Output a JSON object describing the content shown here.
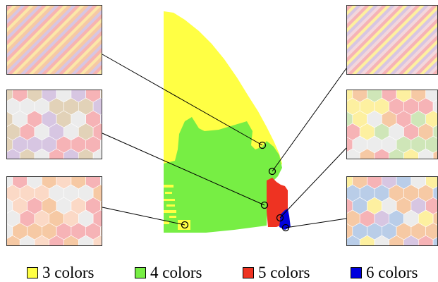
{
  "colors": {
    "yellow": "#ffff44",
    "green": "#77ee44",
    "red": "#ee3322",
    "blue": "#0000dd",
    "pale_yellow": "#fdf0a0",
    "pale_peach": "#f6c9a4",
    "pale_pink": "#f6b3b6",
    "pale_lavender": "#d7c6e2",
    "pale_gray": "#ececec",
    "pale_tan": "#e2d2b8",
    "pale_green": "#cfe6b8",
    "pale_blue": "#b9cde8",
    "line": "#000000"
  },
  "legend": [
    {
      "label": "3 colors",
      "color": "#ffff44"
    },
    {
      "label": "4 colors",
      "color": "#77ee44"
    },
    {
      "label": "5 colors",
      "color": "#ee3322"
    },
    {
      "label": "6 colors",
      "color": "#0000dd"
    }
  ],
  "thumbnails": [
    {
      "pattern": "stripes",
      "colors": [
        "#f8b4b0",
        "#fbe7a8",
        "#f6c9a4",
        "#d7c6e2"
      ]
    },
    {
      "pattern": "hex",
      "colors": [
        "#f6b3b6",
        "#d7c6e2",
        "#e2d2b8",
        "#ececec"
      ]
    },
    {
      "pattern": "hex",
      "colors": [
        "#f6b3b6",
        "#f6c9a4",
        "#ececec",
        "#fbd9c6"
      ]
    },
    {
      "pattern": "stripes",
      "colors": [
        "#f6b3b6",
        "#fdf0a0",
        "#d7c6e2",
        "#f3d7dc"
      ]
    },
    {
      "pattern": "hex",
      "colors": [
        "#f6b3b6",
        "#cfe6b8",
        "#fdf0a0",
        "#ececec",
        "#f6c9a4"
      ]
    },
    {
      "pattern": "hex",
      "colors": [
        "#f6b3b6",
        "#b9cde8",
        "#fdf0a0",
        "#ececec",
        "#f6c9a4",
        "#d7c6e2"
      ]
    }
  ]
}
